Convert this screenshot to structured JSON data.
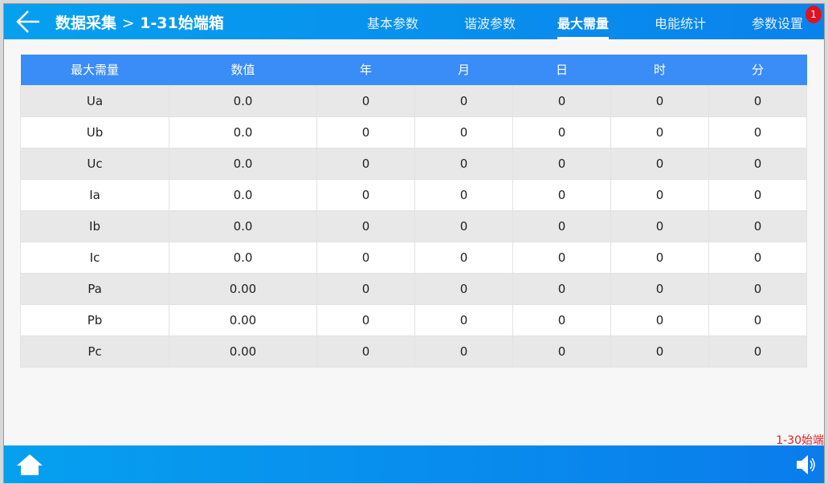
{
  "header": {
    "title": "数据采集",
    "breadcrumb": "1-31始端箱",
    "tabs": [
      {
        "label": "基本参数"
      },
      {
        "label": "谐波参数"
      },
      {
        "label": "最大需量"
      },
      {
        "label": "电能统计"
      },
      {
        "label": "参数设置"
      }
    ],
    "active_tab": "最大需量",
    "badge": "1"
  },
  "table": {
    "columns": [
      "最大需量",
      "数值",
      "年",
      "月",
      "日",
      "时",
      "分"
    ],
    "rows": [
      [
        "Ua",
        "0.0",
        "0",
        "0",
        "0",
        "0",
        "0"
      ],
      [
        "Ub",
        "0.0",
        "0",
        "0",
        "0",
        "0",
        "0"
      ],
      [
        "Uc",
        "0.0",
        "0",
        "0",
        "0",
        "0",
        "0"
      ],
      [
        "Ia",
        "0.0",
        "0",
        "0",
        "0",
        "0",
        "0"
      ],
      [
        "Ib",
        "0.0",
        "0",
        "0",
        "0",
        "0",
        "0"
      ],
      [
        "Ic",
        "0.0",
        "0",
        "0",
        "0",
        "0",
        "0"
      ],
      [
        "Pa",
        "0.00",
        "0",
        "0",
        "0",
        "0",
        "0"
      ],
      [
        "Pb",
        "0.00",
        "0",
        "0",
        "0",
        "0",
        "0"
      ],
      [
        "Pc",
        "0.00",
        "0",
        "0",
        "0",
        "0",
        "0"
      ]
    ]
  },
  "status_note": "1-30始端",
  "colors": {
    "header": "#06a0ef",
    "table_header": "#3a8cf7",
    "note": "#e02020",
    "badge": "#e0121e"
  }
}
